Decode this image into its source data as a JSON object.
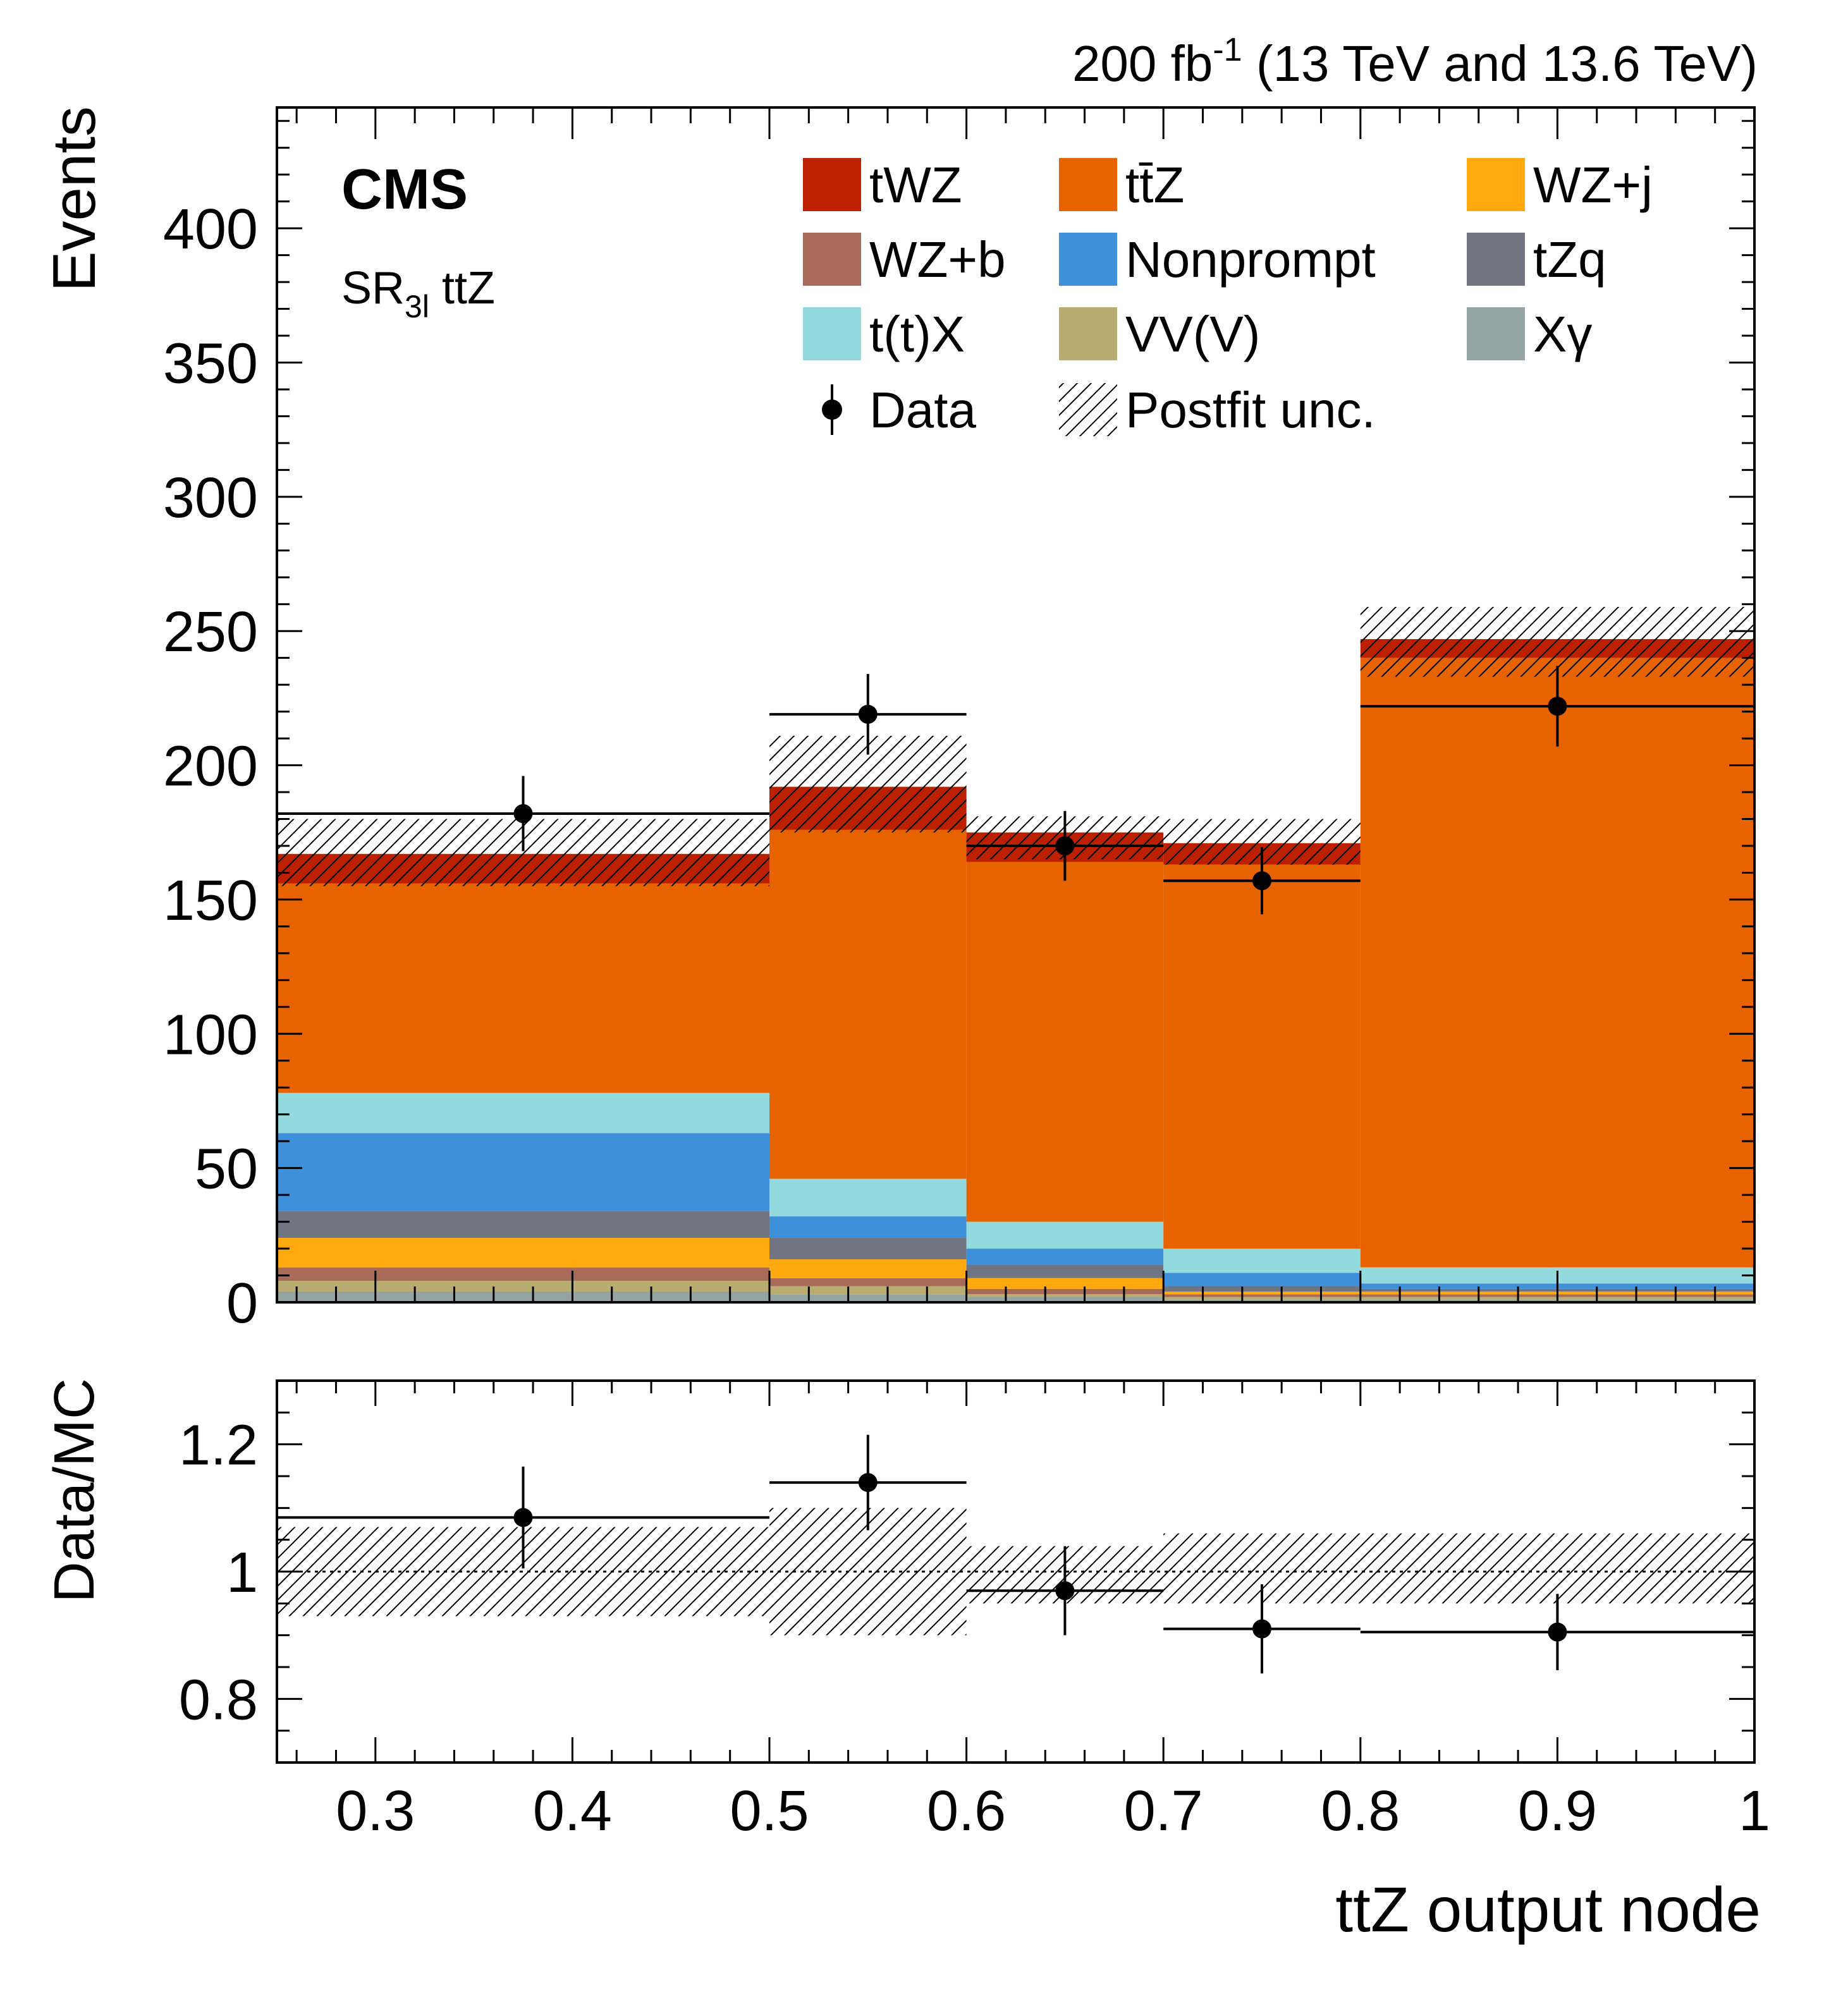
{
  "chart_data": [
    {
      "type": "bar",
      "subtype": "stacked-histogram",
      "lumi_label": {
        "main": "200 fb",
        "sup": "-1",
        "rest": " (13 TeV and 13.6 TeV)"
      },
      "experiment": "CMS",
      "region": {
        "main": "SR",
        "sub": "3l",
        "rest": " ttZ"
      },
      "ylabel": "Events",
      "xlabel": "ttZ output node",
      "ylim": [
        0,
        445
      ],
      "xlim": [
        0.25,
        1.0
      ],
      "yticks": [
        0,
        50,
        100,
        150,
        200,
        250,
        300,
        350,
        400
      ],
      "ytick_labels": [
        "0",
        "50",
        "100",
        "150",
        "200",
        "250",
        "300",
        "350",
        "400"
      ],
      "bin_edges": [
        0.25,
        0.5,
        0.6,
        0.7,
        0.8,
        1.0
      ],
      "series": [
        {
          "name": "Xγ",
          "color": "#94a4a2",
          "values": [
            4,
            3,
            2,
            1,
            1
          ]
        },
        {
          "name": "VV(V)",
          "color": "#b9ac70",
          "values": [
            4,
            3,
            1,
            1,
            1
          ]
        },
        {
          "name": "WZ+b",
          "color": "#a96b59",
          "values": [
            5,
            3,
            2,
            1,
            1
          ]
        },
        {
          "name": "WZ+j",
          "color": "#ffa90e",
          "values": [
            11,
            7,
            4,
            1,
            1
          ]
        },
        {
          "name": "tZq",
          "color": "#717581",
          "values": [
            10,
            8,
            5,
            2,
            1
          ]
        },
        {
          "name": "Nonprompt",
          "color": "#3f90da",
          "values": [
            29,
            8,
            6,
            5,
            2
          ]
        },
        {
          "name": "t(t)X",
          "color": "#92dadd",
          "values": [
            15,
            14,
            10,
            9,
            6
          ]
        },
        {
          "name": "tt̄Z",
          "color": "#e76300",
          "values": [
            78,
            130,
            134,
            143,
            227
          ]
        },
        {
          "name": "tWZ",
          "color": "#bd1f01",
          "values": [
            11,
            16,
            11,
            8,
            7
          ]
        }
      ],
      "postfit_unc": {
        "name": "Postfit unc.",
        "lo": [
          155,
          175,
          165,
          163,
          233
        ],
        "hi": [
          180,
          211,
          181,
          180,
          259
        ]
      },
      "data": {
        "name": "Data",
        "x": [
          0.375,
          0.55,
          0.65,
          0.75,
          0.9
        ],
        "y": [
          182,
          219,
          170,
          157,
          222
        ],
        "yerr": [
          14,
          15,
          13,
          12.5,
          15
        ]
      },
      "legend": {
        "position": "top-right",
        "entries": [
          {
            "label": "tWZ",
            "kind": "fill",
            "color": "#bd1f01"
          },
          {
            "label": "tt̄Z",
            "kind": "fill",
            "color": "#e76300"
          },
          {
            "label": "WZ+j",
            "kind": "fill",
            "color": "#ffa90e"
          },
          {
            "label": "WZ+b",
            "kind": "fill",
            "color": "#a96b59"
          },
          {
            "label": "Nonprompt",
            "kind": "fill",
            "color": "#3f90da"
          },
          {
            "label": "tZq",
            "kind": "fill",
            "color": "#717581"
          },
          {
            "label": "t(t)X",
            "kind": "fill",
            "color": "#92dadd"
          },
          {
            "label": "VV(V)",
            "kind": "fill",
            "color": "#b9ac70"
          },
          {
            "label": "Xγ",
            "kind": "fill",
            "color": "#94a4a2"
          },
          {
            "label": "Data",
            "kind": "marker",
            "color": "#000000"
          },
          {
            "label": "Postfit unc.",
            "kind": "hatch",
            "color": "#000000"
          }
        ]
      }
    },
    {
      "type": "scatter",
      "subtype": "ratio",
      "ylabel": "Data/MC",
      "xlabel": "ttZ output node",
      "ylim": [
        0.7,
        1.3
      ],
      "xlim": [
        0.25,
        1.0
      ],
      "yticks": [
        0.8,
        1.0,
        1.2
      ],
      "ytick_labels": [
        "0.8",
        "1",
        "1.2"
      ],
      "xticks": [
        0.3,
        0.4,
        0.5,
        0.6,
        0.7,
        0.8,
        0.9,
        1.0
      ],
      "xtick_labels": [
        "0.3",
        "0.4",
        "0.5",
        "0.6",
        "0.7",
        "0.8",
        "0.9",
        "1"
      ],
      "reference_line": 1.0,
      "bin_edges": [
        0.25,
        0.5,
        0.6,
        0.7,
        0.8,
        1.0
      ],
      "unc_band": {
        "lo": [
          0.93,
          0.9,
          0.95,
          0.95,
          0.95
        ],
        "hi": [
          1.07,
          1.1,
          1.04,
          1.06,
          1.06
        ]
      },
      "ratio": {
        "x": [
          0.375,
          0.55,
          0.65,
          0.75,
          0.9
        ],
        "y": [
          1.085,
          1.14,
          0.97,
          0.91,
          0.905
        ],
        "yerr": [
          0.08,
          0.075,
          0.07,
          0.07,
          0.06
        ]
      }
    }
  ]
}
